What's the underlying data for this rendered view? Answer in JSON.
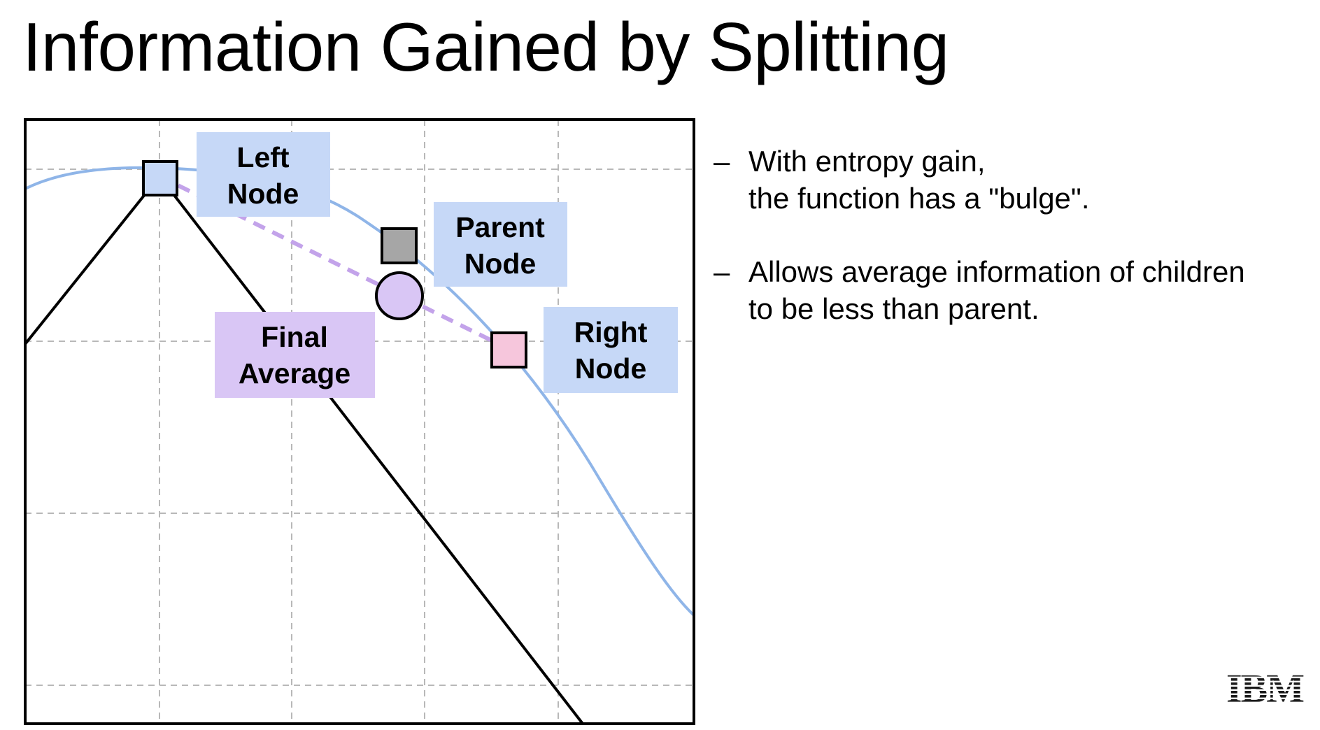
{
  "slide": {
    "title": "Information Gained by Splitting"
  },
  "diagram": {
    "labels": {
      "left_node": [
        "Left",
        "Node"
      ],
      "parent_node": [
        "Parent",
        "Node"
      ],
      "right_node": [
        "Right",
        "Node"
      ],
      "final_average": [
        "Final",
        "Average"
      ]
    },
    "colors": {
      "curve": "#8fb5e8",
      "label_blue": "#c6d8f7",
      "label_purple": "#d9c6f5",
      "left_marker": "#c6d8f7",
      "parent_marker": "#a6a6a6",
      "right_marker": "#f6c6dc",
      "average_marker": "#d9c6f5",
      "dashed_line": "#c3a3ea",
      "grid": "#b8b8b8"
    }
  },
  "bullets": [
    {
      "marker": "–",
      "lines": [
        "With entropy gain,",
        "the function has a \"bulge\"."
      ]
    },
    {
      "marker": "–",
      "lines": [
        "Allows average information of children",
        "to be less than parent."
      ]
    }
  ],
  "logo": {
    "text": "IBM"
  }
}
